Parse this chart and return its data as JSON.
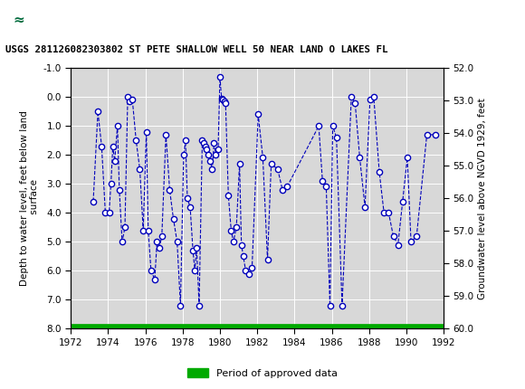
{
  "title": "USGS 281126082303802 ST PETE SHALLOW WELL 50 NEAR LAND O LAKES FL",
  "ylabel_left": "Depth to water level, feet below land\n surface",
  "ylabel_right": "Groundwater level above NGVD 1929, feet",
  "usgs_header_color": "#006B3C",
  "plot_bg": "#d8d8d8",
  "line_color": "#0000BB",
  "marker_facecolor": "white",
  "marker_edgecolor": "#0000BB",
  "green_bar_color": "#00AA00",
  "xlim": [
    1972,
    1992
  ],
  "ylim_left": [
    -1.0,
    8.0
  ],
  "ylim_right": [
    52.0,
    60.0
  ],
  "yticks_left": [
    -1.0,
    0.0,
    1.0,
    2.0,
    3.0,
    4.0,
    5.0,
    6.0,
    7.0,
    8.0
  ],
  "yticks_right": [
    52.0,
    53.0,
    54.0,
    55.0,
    56.0,
    57.0,
    58.0,
    59.0,
    60.0
  ],
  "xticks": [
    1972,
    1974,
    1976,
    1978,
    1980,
    1982,
    1984,
    1986,
    1988,
    1990,
    1992
  ],
  "legend_label": "Period of approved data",
  "data_x": [
    1973.2,
    1973.45,
    1973.65,
    1973.85,
    1974.05,
    1974.15,
    1974.25,
    1974.35,
    1974.5,
    1974.6,
    1974.75,
    1974.9,
    1975.05,
    1975.15,
    1975.3,
    1975.5,
    1975.7,
    1975.88,
    1976.05,
    1976.15,
    1976.3,
    1976.5,
    1976.62,
    1976.75,
    1976.88,
    1977.1,
    1977.3,
    1977.5,
    1977.7,
    1977.88,
    1978.05,
    1978.15,
    1978.25,
    1978.4,
    1978.55,
    1978.65,
    1978.75,
    1978.88,
    1979.05,
    1979.12,
    1979.2,
    1979.28,
    1979.38,
    1979.48,
    1979.58,
    1979.68,
    1979.78,
    1979.9,
    1980.0,
    1980.08,
    1980.15,
    1980.22,
    1980.3,
    1980.45,
    1980.6,
    1980.72,
    1980.88,
    1981.05,
    1981.15,
    1981.25,
    1981.38,
    1981.55,
    1981.72,
    1982.05,
    1982.3,
    1982.55,
    1982.75,
    1983.1,
    1983.35,
    1983.6,
    1985.3,
    1985.5,
    1985.7,
    1985.9,
    1986.05,
    1986.25,
    1986.55,
    1987.05,
    1987.25,
    1987.5,
    1987.78,
    1988.05,
    1988.25,
    1988.55,
    1988.8,
    1989.05,
    1989.3,
    1989.55,
    1989.8,
    1990.05,
    1990.25,
    1990.55,
    1991.1,
    1991.55
  ],
  "data_y": [
    3.6,
    0.5,
    1.7,
    4.0,
    4.0,
    3.0,
    1.7,
    2.2,
    1.0,
    3.2,
    5.0,
    4.5,
    0.0,
    0.15,
    0.1,
    1.5,
    2.5,
    4.6,
    1.2,
    4.6,
    6.0,
    6.3,
    5.0,
    5.2,
    4.8,
    1.3,
    3.2,
    4.2,
    5.0,
    7.2,
    2.0,
    1.5,
    3.5,
    3.8,
    5.3,
    6.0,
    5.2,
    7.2,
    1.5,
    1.6,
    1.7,
    1.8,
    2.0,
    2.2,
    2.5,
    1.6,
    2.0,
    1.8,
    -0.7,
    0.05,
    0.1,
    0.15,
    0.2,
    3.4,
    4.6,
    5.0,
    4.5,
    2.3,
    5.1,
    5.5,
    6.0,
    6.1,
    5.9,
    0.6,
    2.1,
    5.6,
    2.3,
    2.5,
    3.2,
    3.1,
    1.0,
    2.9,
    3.1,
    7.2,
    1.0,
    1.4,
    7.2,
    0.0,
    0.2,
    2.1,
    3.8,
    0.1,
    0.0,
    2.6,
    4.0,
    4.0,
    4.8,
    5.1,
    3.6,
    2.1,
    5.0,
    4.8,
    1.3,
    1.3
  ]
}
